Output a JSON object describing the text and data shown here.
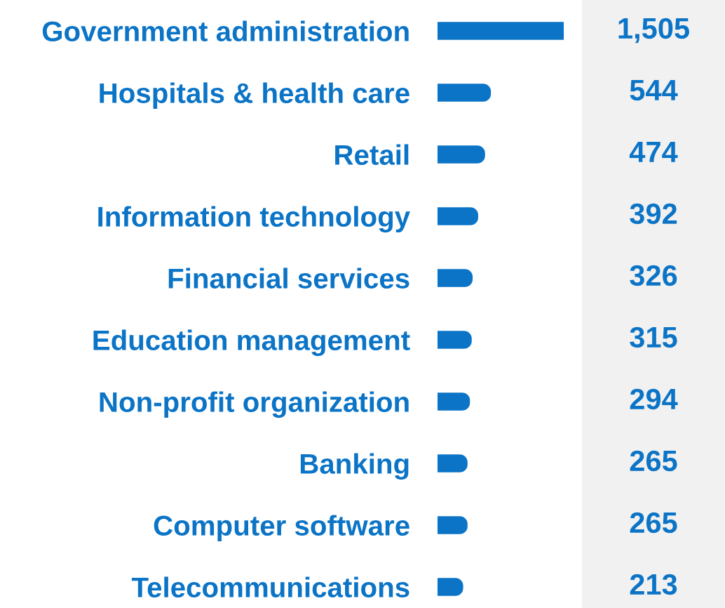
{
  "chart_data": {
    "type": "bar",
    "orientation": "horizontal",
    "categories": [
      "Government administration",
      "Hospitals & health care",
      "Retail",
      "Information technology",
      "Financial services",
      "Education management",
      "Non-profit organization",
      "Banking",
      "Computer software",
      "Telecommunications"
    ],
    "values": [
      1505,
      544,
      474,
      392,
      326,
      315,
      294,
      265,
      265,
      213
    ],
    "value_labels": [
      "1,505",
      "544",
      "474",
      "392",
      "326",
      "315",
      "294",
      "265",
      "265",
      "213"
    ],
    "color": "#0b74c6",
    "grid": false,
    "legend": false
  }
}
